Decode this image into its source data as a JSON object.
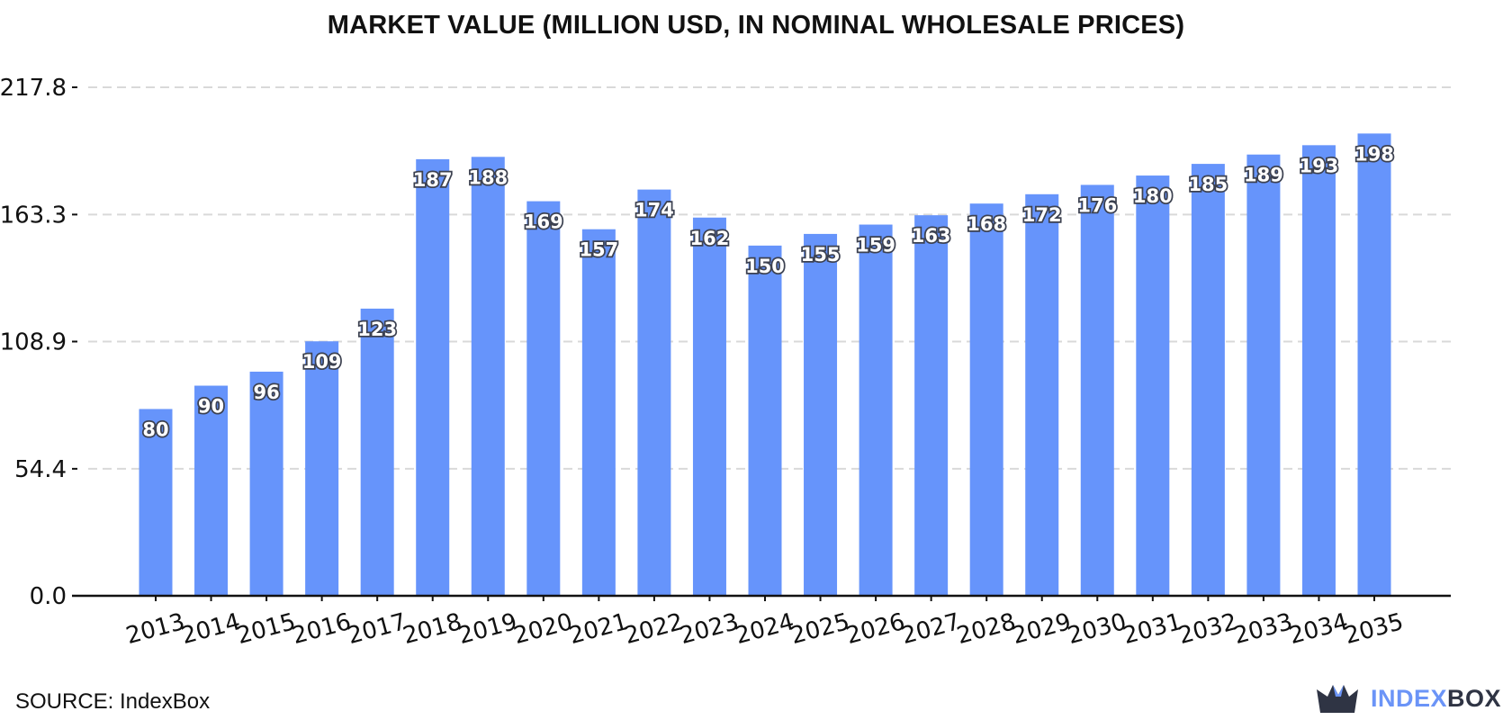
{
  "chart_data": {
    "type": "bar",
    "title": "MARKET VALUE (MILLION USD, IN NOMINAL WHOLESALE PRICES)",
    "xlabel": "",
    "ylabel": "",
    "categories": [
      "2013",
      "2014",
      "2015",
      "2016",
      "2017",
      "2018",
      "2019",
      "2020",
      "2021",
      "2022",
      "2023",
      "2024",
      "2025",
      "2026",
      "2027",
      "2028",
      "2029",
      "2030",
      "2031",
      "2032",
      "2033",
      "2034",
      "2035"
    ],
    "values": [
      80,
      90,
      96,
      109,
      123,
      187,
      188,
      169,
      157,
      174,
      162,
      150,
      155,
      159,
      163,
      168,
      172,
      176,
      180,
      185,
      189,
      193,
      198
    ],
    "value_labels": [
      "80",
      "90",
      "96",
      "109",
      "123",
      "187",
      "188",
      "169",
      "157",
      "174",
      "162",
      "150",
      "155",
      "159",
      "163",
      "168",
      "172",
      "176",
      "180",
      "185",
      "189",
      "193",
      "198"
    ],
    "yticks": [
      0.0,
      54.4,
      108.9,
      163.3,
      217.8
    ],
    "ytick_labels": [
      "0.0",
      "54.4",
      "108.9",
      "163.3",
      "217.8"
    ],
    "ylim": [
      0,
      217.8
    ],
    "grid": "horizontal-dashed",
    "bar_color": "#6694fb",
    "grid_color": "#d9d9d9"
  },
  "footer": {
    "source_label": "SOURCE: IndexBox"
  },
  "brand": {
    "index_text": "INDEX",
    "box_text": "BOX",
    "logo_icon": "crown-box-icon",
    "index_color": "#6b94f7",
    "box_color": "#2f3444"
  }
}
